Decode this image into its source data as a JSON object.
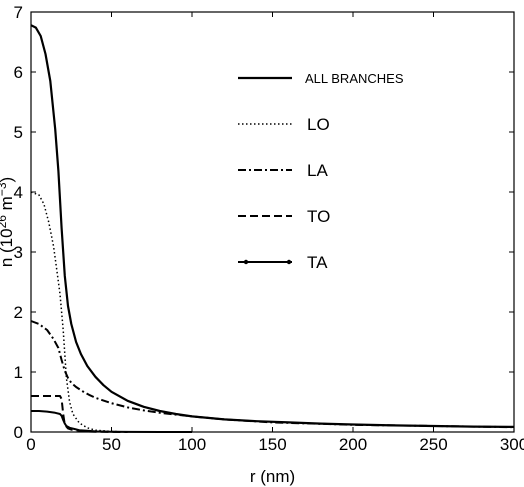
{
  "chart_data": {
    "type": "line",
    "title": "",
    "xlabel": "r (nm)",
    "ylabel_main": "n (10",
    "ylabel_exp1": "26",
    "ylabel_mid": " m",
    "ylabel_exp2": "−3",
    "ylabel_close": ")",
    "xlim": [
      0,
      300
    ],
    "ylim": [
      0,
      7
    ],
    "xticks": [
      0,
      50,
      100,
      150,
      200,
      250,
      300
    ],
    "yticks": [
      0,
      1,
      2,
      3,
      4,
      5,
      6,
      7
    ],
    "grid": false,
    "legend_position": "top-right",
    "series": [
      {
        "name": "ALL BRANCHES",
        "style": "solid",
        "x": [
          0,
          3,
          6,
          9,
          12,
          15,
          17,
          19,
          21,
          23,
          25,
          28,
          31,
          35,
          40,
          45,
          50,
          60,
          70,
          80,
          90,
          100,
          120,
          140,
          160,
          180,
          200,
          225,
          250,
          275,
          300
        ],
        "y": [
          6.78,
          6.74,
          6.6,
          6.3,
          5.85,
          5.05,
          4.35,
          3.4,
          2.6,
          2.1,
          1.8,
          1.5,
          1.3,
          1.1,
          0.92,
          0.78,
          0.67,
          0.52,
          0.42,
          0.35,
          0.3,
          0.26,
          0.21,
          0.18,
          0.16,
          0.14,
          0.125,
          0.11,
          0.1,
          0.09,
          0.085
        ]
      },
      {
        "name": "LO",
        "style": "dotted",
        "x": [
          0,
          5,
          8,
          11,
          14,
          16,
          18,
          19,
          20,
          21,
          22,
          24,
          26,
          30,
          35,
          40,
          50,
          60
        ],
        "y": [
          4.0,
          3.95,
          3.8,
          3.5,
          3.1,
          2.7,
          2.3,
          2.0,
          1.7,
          1.3,
          0.9,
          0.5,
          0.3,
          0.15,
          0.07,
          0.03,
          0.01,
          0.0
        ]
      },
      {
        "name": "LA",
        "style": "dashdot",
        "x": [
          0,
          5,
          10,
          14,
          17,
          19,
          21,
          23,
          25,
          28,
          32,
          36,
          40,
          50,
          60,
          70,
          80,
          90,
          100,
          120,
          150,
          200,
          250,
          300
        ],
        "y": [
          1.85,
          1.8,
          1.7,
          1.55,
          1.4,
          1.2,
          1.02,
          0.9,
          0.82,
          0.75,
          0.68,
          0.62,
          0.57,
          0.48,
          0.41,
          0.36,
          0.32,
          0.29,
          0.26,
          0.21,
          0.16,
          0.12,
          0.1,
          0.08
        ]
      },
      {
        "name": "TO",
        "style": "dashed",
        "x": [
          0,
          5,
          10,
          15,
          18,
          19,
          20,
          21,
          23,
          25,
          28,
          31,
          35,
          40,
          50,
          60
        ],
        "y": [
          0.6,
          0.6,
          0.6,
          0.6,
          0.6,
          0.55,
          0.3,
          0.12,
          0.06,
          0.04,
          0.03,
          0.02,
          0.01,
          0.005,
          0.002,
          0.0
        ]
      },
      {
        "name": "TA",
        "style": "solid-markers",
        "x": [
          0,
          5,
          10,
          15,
          18,
          19,
          20,
          21,
          22,
          24,
          27,
          30,
          35,
          40,
          50,
          60,
          80,
          100
        ],
        "y": [
          0.35,
          0.35,
          0.34,
          0.32,
          0.3,
          0.27,
          0.2,
          0.14,
          0.1,
          0.07,
          0.05,
          0.03,
          0.02,
          0.01,
          0.005,
          0.002,
          0.0,
          0.0
        ]
      }
    ]
  }
}
